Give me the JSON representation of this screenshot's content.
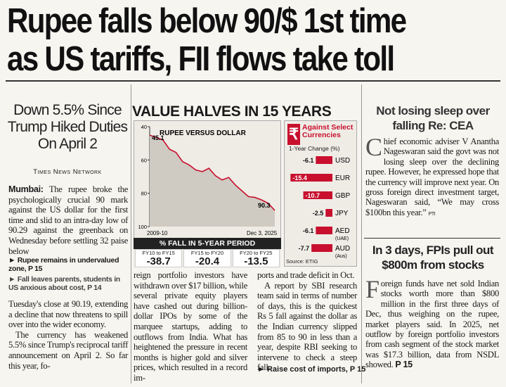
{
  "headline": {
    "line1": "Rupee falls below 90/$ 1st time",
    "line2": "as US tariffs, FII flows take toll"
  },
  "left": {
    "subhead": "Down 5.5% Since Trump Hiked Duties On April 2",
    "byline": "Times News Network",
    "dateline": "Mumbai:",
    "para1": "The rupee broke the psychologically crucial 90 mark against the US dollar for the first time and slid to an intra-day low of 90.29 against the greenback on Wednesday before settling 32 paise below",
    "pointer1": "Rupee remains in undervalued zone, P 15",
    "pointer2": "Fall leaves parents, students in US anxious about cost, P 14",
    "para2": "Tuesday's close at 90.19, extending a decline that now threatens to spill over into the wider economy.",
    "para3": "The currency has weakened 5.5% since Trump's reciprocal tariff announcement on April 2. So far this year, fo-"
  },
  "graphic": {
    "title": "VALUE HALVES IN 15 YEARS",
    "chart_title": "RUPEE VERSUS DOLLAR",
    "chart_start_label": "2009-10",
    "chart_end_label": "Dec 3, 2025",
    "chart_data": {
      "type": "area",
      "title": "RUPEE VERSUS DOLLAR",
      "x_labels": [
        "2009-10",
        "Dec 3, 2025"
      ],
      "y_ticks": [
        40,
        60,
        80,
        100
      ],
      "ylim": [
        40,
        100
      ],
      "y_inverted": true,
      "values": [
        45.1,
        46.5,
        47.9,
        53.5,
        55.5,
        61,
        63,
        66,
        67,
        65,
        69.5,
        72,
        70.5,
        75,
        78.5,
        82,
        82.5,
        84,
        86,
        90.3
      ],
      "annotations": [
        {
          "label": "45.1",
          "value": 45.1
        },
        {
          "label": "90.3",
          "value": 90.3
        }
      ],
      "fill_color": "#cfcac2",
      "line_color": "#c8102e"
    },
    "pct_title": "% FALL IN 5-YEAR PERIOD",
    "periods": [
      {
        "label": "FY10 to FY15",
        "value": "-38.7"
      },
      {
        "label": "FY15 to FY20",
        "value": "-20.4"
      },
      {
        "label": "FY20 to FY25",
        "value": "-13.5"
      }
    ],
    "bar_panel": {
      "rupee_symbol": "₹",
      "title": "Against Select Currencies",
      "subtitle": "1-Year Change (%)",
      "source": "Source: ETIG",
      "bar_color": "#c8102e",
      "chart_data": {
        "type": "bar",
        "title": "Against Select Currencies",
        "ylabel": "1-Year Change (%)",
        "categories": [
          "USD",
          "EUR",
          "GBP",
          "JPY",
          "AED",
          "AUD"
        ],
        "category_notes": [
          "",
          "",
          "",
          "",
          "(UAE)",
          "(Aus)"
        ],
        "values": [
          -6.1,
          -15.4,
          -10.7,
          -2.5,
          -6.1,
          -7.7
        ],
        "xlim": [
          -16,
          0
        ]
      }
    }
  },
  "middle_text": {
    "col1": "reign portfolio investors have withdrawn over $17 billion, while several private equity players have cashed out during billion-dollar IPOs by some of the marquee startups, adding to outflows from India. What has heightened the pressure in recent months is higher gold and silver prices, which resulted in a record im-",
    "col2a": "ports and trade deficit in Oct.",
    "col2b": "A report by SBI research team said in terms of number of days, this is the quickest Rs 5 fall against the dollar as the Indian currency slipped from 85 to 90 in less than a year, despite RBI seeking to intervene to check a steep fall.",
    "xref": "Raise cost of imports, P 15"
  },
  "right": {
    "head1": "Not losing sleep over falling Re: CEA",
    "drop1": "C",
    "body1": "hief economic adviser V Anantha Nageswaran said the govt was not losing sleep over the declining rupee. However, he expressed hope that the currency will improve next year. On gross foreign direct investment target, Nageswaran said, “We may cross $100bn this year.”",
    "tag1": "PTI",
    "head2": "In 3 days, FPIs pull out $800m from stocks",
    "drop2": "F",
    "body2": "oreign funds have net sold Indian stocks worth more than $800 million in the first three days of Dec, thus weighing on the rupee, market players said. In 2025, net outflow by foreign portfolio investors from cash segment of the stock market was $17.3 billion, data from NSDL showed.",
    "tag2": "P 15"
  }
}
